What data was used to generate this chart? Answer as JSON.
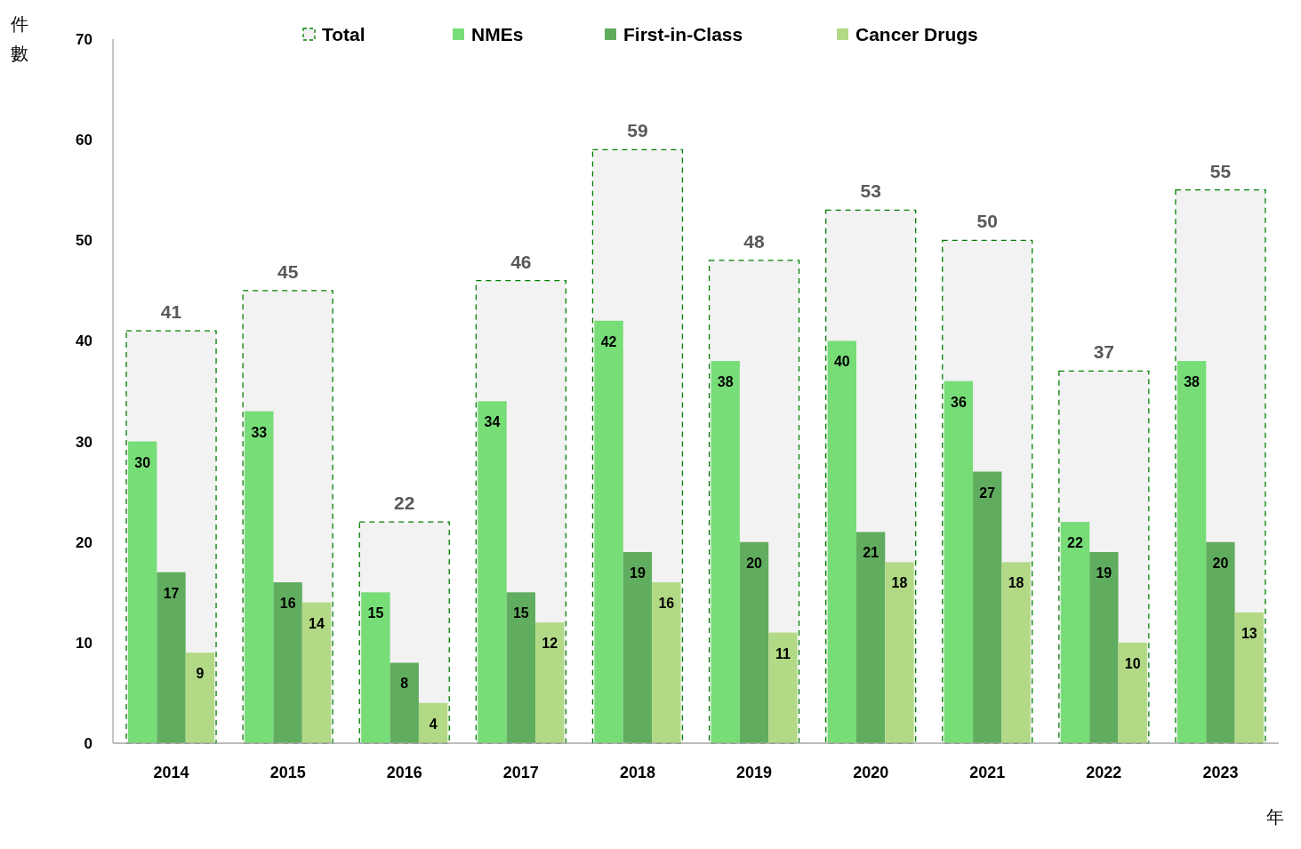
{
  "chart_data": {
    "type": "bar",
    "ylabel": "件數",
    "xlabel": "年",
    "categories": [
      "2014",
      "2015",
      "2016",
      "2017",
      "2018",
      "2019",
      "2020",
      "2021",
      "2022",
      "2023"
    ],
    "series": [
      {
        "name": "Total",
        "color": "#f2f2f2",
        "line_style": "dashed",
        "values": [
          41,
          45,
          22,
          46,
          59,
          48,
          53,
          50,
          37,
          55
        ]
      },
      {
        "name": "NMEs",
        "color": "#77dd77",
        "values": [
          30,
          33,
          15,
          34,
          42,
          38,
          40,
          36,
          22,
          38
        ]
      },
      {
        "name": "First-in-Class",
        "color": "#61ad5f",
        "values": [
          17,
          16,
          8,
          15,
          19,
          20,
          21,
          27,
          19,
          20
        ]
      },
      {
        "name": "Cancer Drugs",
        "color": "#b2d985",
        "values": [
          9,
          14,
          4,
          12,
          16,
          11,
          18,
          18,
          10,
          13
        ]
      }
    ],
    "ylim": [
      0,
      70
    ],
    "yticks": [
      0,
      10,
      20,
      30,
      40,
      50,
      60,
      70
    ],
    "grid": false,
    "legend": "top",
    "data_labels": true
  }
}
